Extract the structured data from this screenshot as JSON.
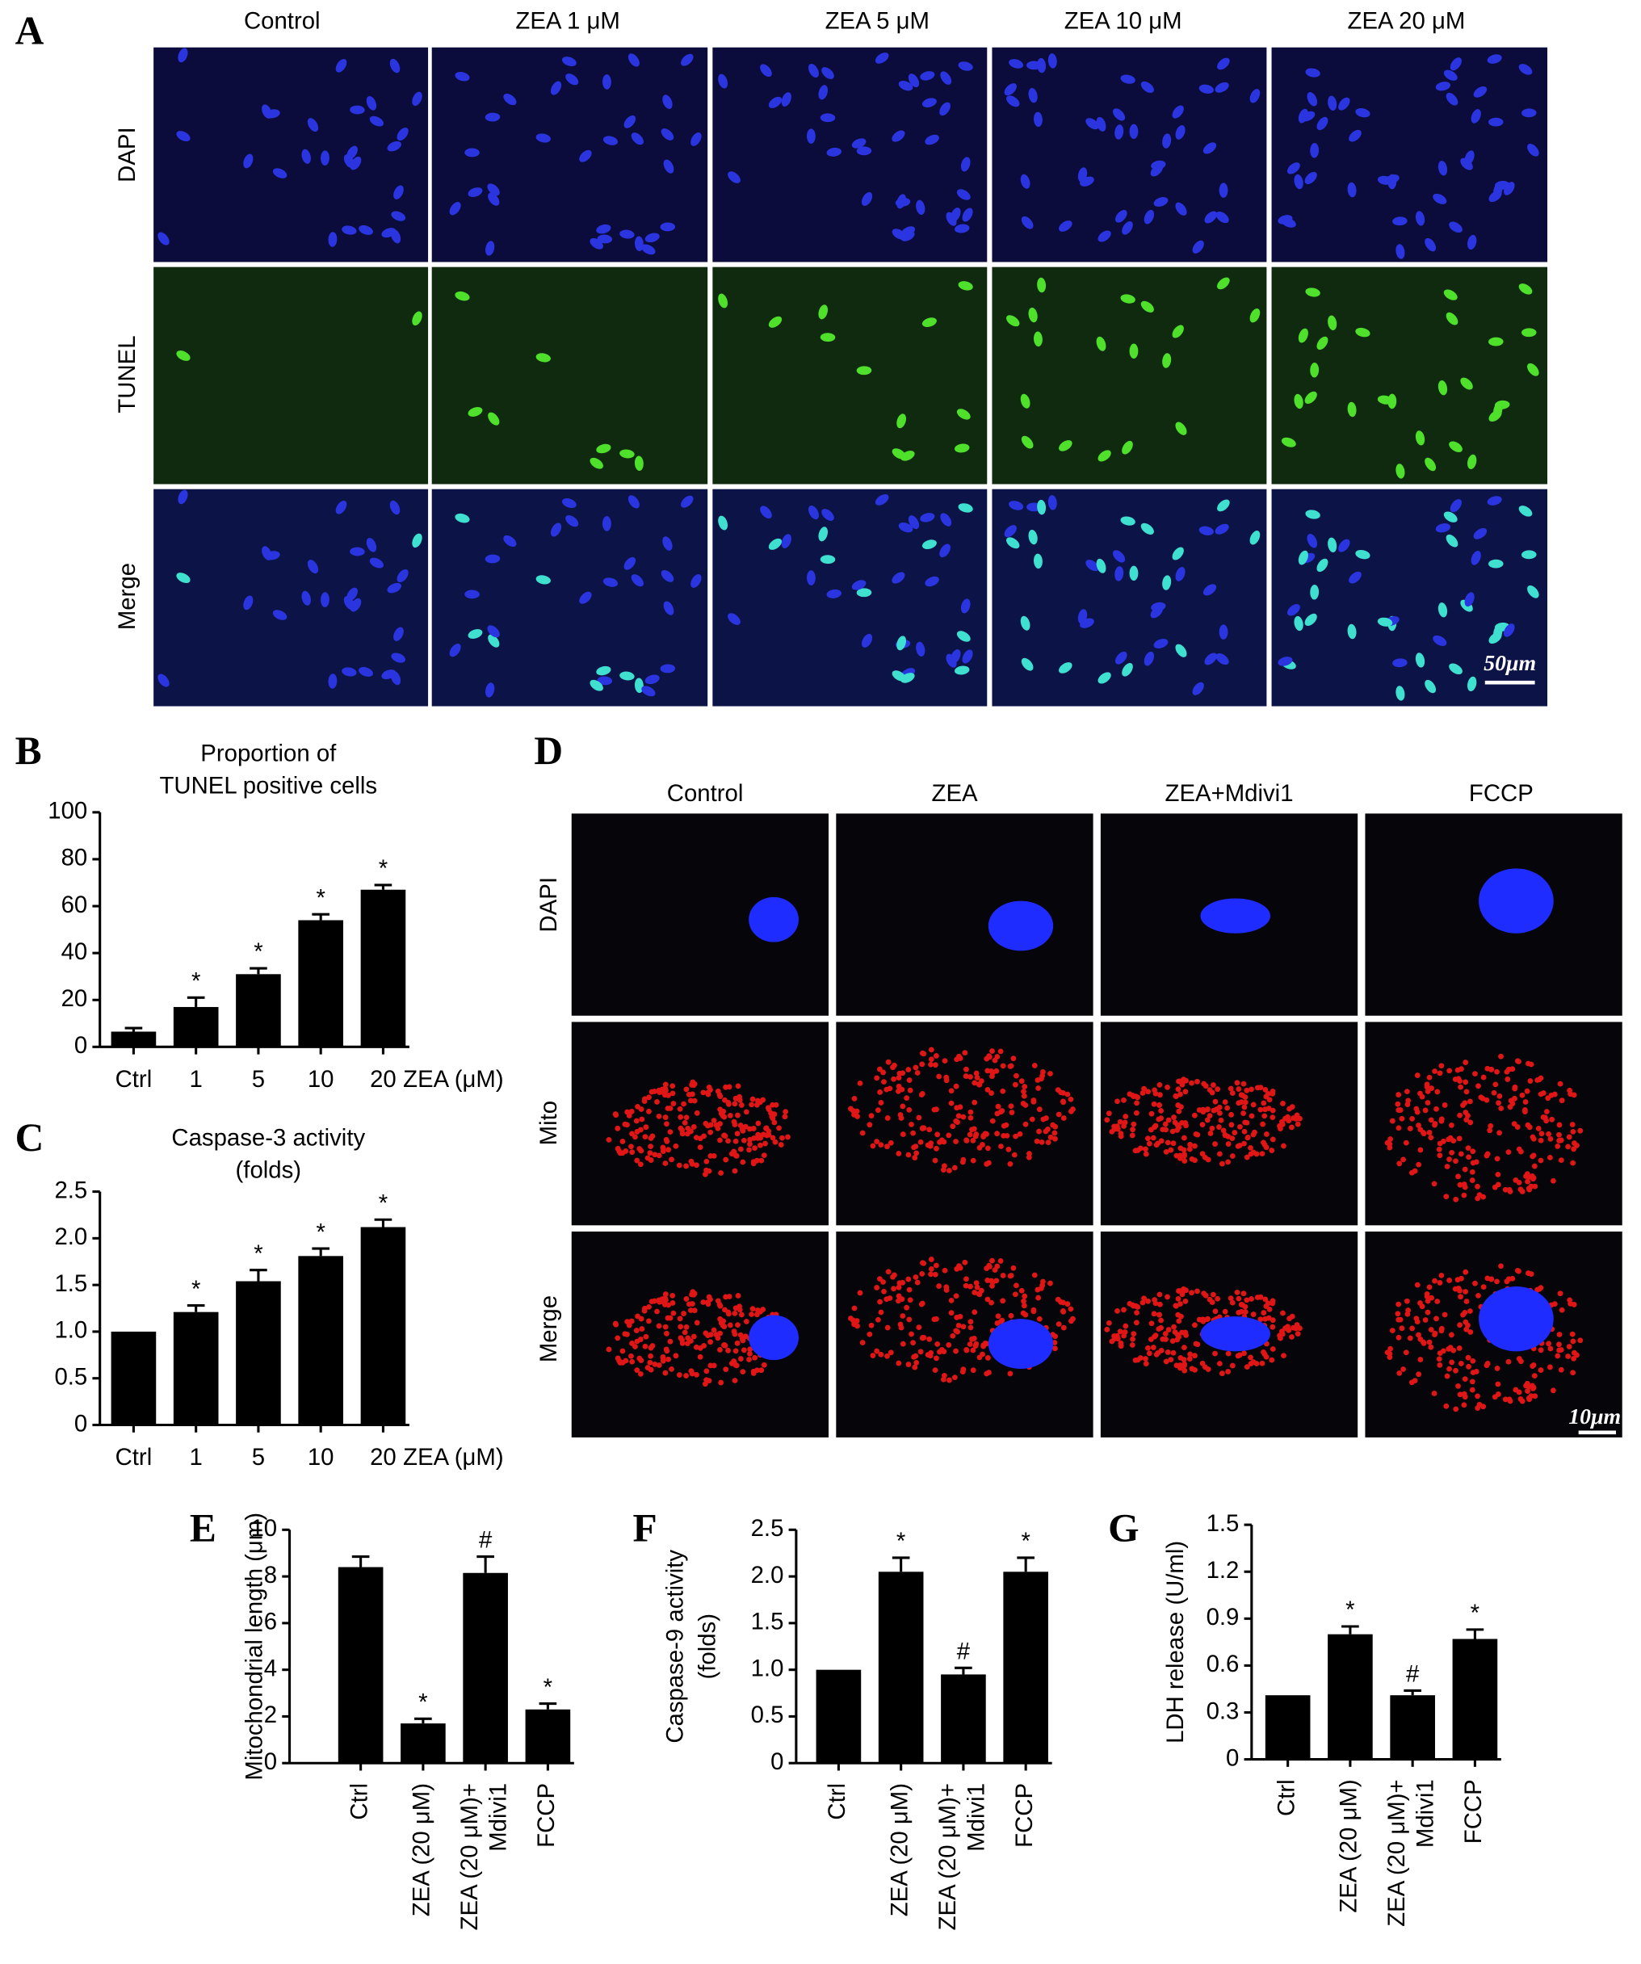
{
  "panel_a": {
    "letter": "A",
    "columns": [
      "Control",
      "ZEA 1 μM",
      "ZEA 5 μM",
      "ZEA 10 μM",
      "ZEA 20 μM"
    ],
    "rows": [
      "DAPI",
      "TUNEL",
      "Merge"
    ],
    "scale_bar": "50μm"
  },
  "panel_d": {
    "letter": "D",
    "columns": [
      "Control",
      "ZEA",
      "ZEA+Mdivi1",
      "FCCP"
    ],
    "rows": [
      "DAPI",
      "Mito",
      "Merge"
    ],
    "scale_bar": "10μm"
  },
  "chart_data": [
    {
      "type": "bar",
      "panel": "B",
      "title": [
        "Proportion of",
        "TUNEL positive cells"
      ],
      "categories": [
        "Ctrl",
        "1",
        "5",
        "10",
        "20"
      ],
      "x_label": "ZEA (μM)",
      "values": [
        6.5,
        17,
        31,
        54,
        67
      ],
      "errors": [
        1.5,
        4,
        2.5,
        2.5,
        2
      ],
      "annotations": [
        null,
        "*",
        "*",
        "*",
        "*"
      ],
      "color": "#000000",
      "ylim": [
        0,
        100
      ],
      "yticks": [
        0,
        20,
        40,
        60,
        80,
        100
      ]
    },
    {
      "type": "bar",
      "panel": "C",
      "title": [
        "Caspase-3 activity",
        "(folds)"
      ],
      "categories": [
        "Ctrl",
        "1",
        "5",
        "10",
        "20"
      ],
      "x_label": "ZEA (μM)",
      "values": [
        1.0,
        1.21,
        1.54,
        1.81,
        2.12
      ],
      "errors": [
        null,
        0.07,
        0.12,
        0.08,
        0.08
      ],
      "annotations": [
        null,
        "*",
        "*",
        "*",
        "*"
      ],
      "color": "#000000",
      "ylim": [
        0,
        2.5
      ],
      "yticks": [
        0,
        0.5,
        {
          "value": 1,
          "label": "1.0"
        },
        1.5,
        {
          "value": 2,
          "label": "2.0"
        },
        2.5
      ]
    },
    {
      "type": "bar",
      "panel": "E",
      "y_label": [
        "Mitochondrial length (μm)"
      ],
      "categories": [
        "Ctrl",
        "ZEA (20 μM)",
        [
          "ZEA (20 μM)+",
          "Mdivi1"
        ],
        "FCCP"
      ],
      "values": [
        8.4,
        1.7,
        8.15,
        2.3
      ],
      "errors": [
        0.45,
        0.2,
        0.7,
        0.25
      ],
      "annotations": [
        null,
        "*",
        "#",
        "*"
      ],
      "color": "#000000",
      "ylim": [
        0,
        10
      ],
      "yticks": [
        0,
        2,
        4,
        6,
        8,
        10
      ]
    },
    {
      "type": "bar",
      "panel": "F",
      "y_label": [
        "Caspase-9 activity",
        "(folds)"
      ],
      "categories": [
        "Ctrl",
        "ZEA (20 μM)",
        [
          "ZEA (20 μM)+",
          "Mdivi1"
        ],
        "FCCP"
      ],
      "values": [
        1.0,
        2.05,
        0.95,
        2.05
      ],
      "errors": [
        null,
        0.15,
        0.07,
        0.15
      ],
      "annotations": [
        null,
        "*",
        "#",
        "*"
      ],
      "color": "#000000",
      "ylim": [
        0,
        2.5
      ],
      "yticks": [
        0,
        0.5,
        {
          "value": 1,
          "label": "1.0"
        },
        1.5,
        {
          "value": 2,
          "label": "2.0"
        },
        2.5
      ]
    },
    {
      "type": "bar",
      "panel": "G",
      "y_label": [
        "LDH release (U/ml)"
      ],
      "categories": [
        "Ctrl",
        "ZEA (20 μM)",
        [
          "ZEA (20 μM)+",
          "Mdivi1"
        ],
        "FCCP"
      ],
      "values": [
        0.41,
        0.8,
        0.41,
        0.77
      ],
      "errors": [
        null,
        0.05,
        0.03,
        0.06
      ],
      "annotations": [
        null,
        "*",
        "#",
        "*"
      ],
      "color": "#000000",
      "ylim": [
        0,
        1.5
      ],
      "yticks": [
        0,
        0.3,
        0.6,
        0.9,
        1.2,
        1.5
      ]
    }
  ]
}
